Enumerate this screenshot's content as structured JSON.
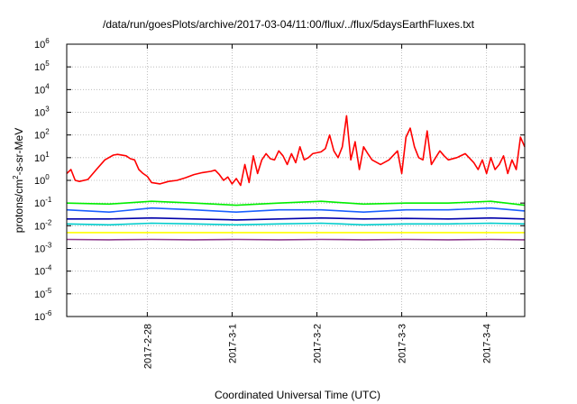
{
  "chart_data": {
    "type": "line",
    "title": "/data/run/goesPlots/archive/2017-03-04/11:00/flux/../flux/5daysEarthFluxes.txt",
    "xlabel": "Coordinated Universal Time (UTC)",
    "ylabel": "protons/cm2-s-sr-MeV",
    "yscale": "log",
    "ylim": [
      1e-06,
      1000000.0
    ],
    "xlim_days": [
      0,
      5.4
    ],
    "y_ticks": [
      {
        "base": "10",
        "exp": "-6"
      },
      {
        "base": "10",
        "exp": "-5"
      },
      {
        "base": "10",
        "exp": "-4"
      },
      {
        "base": "10",
        "exp": "-3"
      },
      {
        "base": "10",
        "exp": "-2"
      },
      {
        "base": "10",
        "exp": "-1"
      },
      {
        "base": "10",
        "exp": "0"
      },
      {
        "base": "10",
        "exp": "1"
      },
      {
        "base": "10",
        "exp": "2"
      },
      {
        "base": "10",
        "exp": "3"
      },
      {
        "base": "10",
        "exp": "4"
      },
      {
        "base": "10",
        "exp": "5"
      },
      {
        "base": "10",
        "exp": "6"
      }
    ],
    "x_ticks": [
      {
        "label": "2017-2-28",
        "day": 0.95
      },
      {
        "label": "2017-3-1",
        "day": 1.95
      },
      {
        "label": "2017-3-2",
        "day": 2.95
      },
      {
        "label": "2017-3-3",
        "day": 3.95
      },
      {
        "label": "2017-3-4",
        "day": 4.95
      }
    ],
    "grid": true,
    "series": [
      {
        "color": "#ff0000",
        "x": [
          0.0,
          0.05,
          0.1,
          0.15,
          0.25,
          0.35,
          0.45,
          0.55,
          0.6,
          0.7,
          0.75,
          0.8,
          0.85,
          0.9,
          0.95,
          1.0,
          1.1,
          1.2,
          1.3,
          1.4,
          1.5,
          1.6,
          1.7,
          1.75,
          1.8,
          1.85,
          1.9,
          1.95,
          2.0,
          2.05,
          2.1,
          2.15,
          2.2,
          2.25,
          2.3,
          2.35,
          2.4,
          2.45,
          2.5,
          2.55,
          2.6,
          2.65,
          2.7,
          2.75,
          2.8,
          2.85,
          2.9,
          3.0,
          3.05,
          3.1,
          3.15,
          3.2,
          3.25,
          3.3,
          3.35,
          3.4,
          3.45,
          3.5,
          3.55,
          3.6,
          3.7,
          3.8,
          3.9,
          3.95,
          4.0,
          4.05,
          4.1,
          4.15,
          4.2,
          4.25,
          4.3,
          4.35,
          4.4,
          4.45,
          4.5,
          4.6,
          4.7,
          4.8,
          4.85,
          4.9,
          4.95,
          5.0,
          5.05,
          5.1,
          5.15,
          5.2,
          5.25,
          5.3,
          5.35,
          5.4
        ],
        "values": [
          2.0,
          3.0,
          1.0,
          0.9,
          1.1,
          3.0,
          8.0,
          13.0,
          14.0,
          12.0,
          9.0,
          8.0,
          3.0,
          2.0,
          1.5,
          0.8,
          0.7,
          0.9,
          1.0,
          1.3,
          1.8,
          2.2,
          2.5,
          2.8,
          1.8,
          1.0,
          1.4,
          0.7,
          1.2,
          0.6,
          5.0,
          0.8,
          12.0,
          2.0,
          8.0,
          15.0,
          9.0,
          8.0,
          20.0,
          12.0,
          5.0,
          15.0,
          6.0,
          30.0,
          8.0,
          10.0,
          15.0,
          18.0,
          25.0,
          100.0,
          20.0,
          10.0,
          30.0,
          700.0,
          8.0,
          50.0,
          3.0,
          30.0,
          15.0,
          8.0,
          5.0,
          8.0,
          20.0,
          2.0,
          80.0,
          200.0,
          30.0,
          10.0,
          8.0,
          150.0,
          5.0,
          10.0,
          20.0,
          12.0,
          8.0,
          10.0,
          15.0,
          6.0,
          3.0,
          8.0,
          2.0,
          10.0,
          3.0,
          5.0,
          12.0,
          2.0,
          8.0,
          3.0,
          80.0,
          30.0
        ]
      },
      {
        "color": "#00ee00",
        "x": [
          0.0,
          0.5,
          1.0,
          1.5,
          2.0,
          2.5,
          3.0,
          3.5,
          4.0,
          4.5,
          5.0,
          5.4
        ],
        "values": [
          0.1,
          0.09,
          0.12,
          0.1,
          0.08,
          0.1,
          0.12,
          0.09,
          0.1,
          0.1,
          0.12,
          0.08
        ]
      },
      {
        "color": "#1a5fff",
        "x": [
          0.0,
          0.5,
          1.0,
          1.5,
          2.0,
          2.5,
          3.0,
          3.5,
          4.0,
          4.5,
          5.0,
          5.4
        ],
        "values": [
          0.05,
          0.04,
          0.06,
          0.05,
          0.04,
          0.05,
          0.05,
          0.04,
          0.05,
          0.05,
          0.06,
          0.045
        ]
      },
      {
        "color": "#0000aa",
        "x": [
          0.0,
          0.5,
          1.0,
          1.5,
          2.0,
          2.5,
          3.0,
          3.5,
          4.0,
          4.5,
          5.0,
          5.4
        ],
        "values": [
          0.02,
          0.02,
          0.022,
          0.02,
          0.018,
          0.02,
          0.022,
          0.02,
          0.021,
          0.02,
          0.022,
          0.02
        ]
      },
      {
        "color": "#00cccc",
        "x": [
          0.0,
          0.5,
          1.0,
          1.5,
          2.0,
          2.5,
          3.0,
          3.5,
          4.0,
          4.5,
          5.0,
          5.4
        ],
        "values": [
          0.012,
          0.011,
          0.013,
          0.012,
          0.011,
          0.012,
          0.013,
          0.011,
          0.012,
          0.012,
          0.013,
          0.012
        ]
      },
      {
        "color": "#ffff00",
        "x": [
          0.0,
          0.5,
          1.0,
          1.5,
          2.0,
          2.5,
          3.0,
          3.5,
          4.0,
          4.5,
          5.0,
          5.4
        ],
        "values": [
          0.005,
          0.005,
          0.005,
          0.005,
          0.005,
          0.005,
          0.005,
          0.005,
          0.005,
          0.005,
          0.005,
          0.005
        ]
      },
      {
        "color": "#8e3b8e",
        "x": [
          0.0,
          0.5,
          1.0,
          1.5,
          2.0,
          2.5,
          3.0,
          3.5,
          4.0,
          4.5,
          5.0,
          5.4
        ],
        "values": [
          0.0025,
          0.0024,
          0.0025,
          0.0024,
          0.0025,
          0.0024,
          0.0025,
          0.0024,
          0.0025,
          0.0024,
          0.0025,
          0.0024
        ]
      }
    ]
  }
}
